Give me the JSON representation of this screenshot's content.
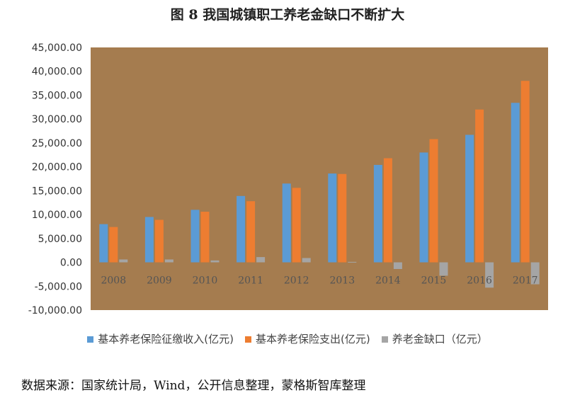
{
  "chart_data": {
    "type": "bar",
    "title": "图 8 我国城镇职工养老金缺口不断扩大",
    "categories": [
      "2008",
      "2009",
      "2010",
      "2011",
      "2012",
      "2013",
      "2014",
      "2015",
      "2016",
      "2017"
    ],
    "series": [
      {
        "name": "基本养老保险征缴收入(亿元)",
        "color": "#5b9bd5",
        "values": [
          8000,
          9500,
          11000,
          13900,
          16500,
          18600,
          20400,
          23000,
          26700,
          33400
        ]
      },
      {
        "name": "基本养老保险支出(亿元)",
        "color": "#ed7d31",
        "values": [
          7400,
          8900,
          10600,
          12800,
          15600,
          18500,
          21800,
          25800,
          32000,
          38000
        ]
      },
      {
        "name": "养老金缺口（亿元）",
        "color": "#a5a5a5",
        "values": [
          600,
          600,
          400,
          1100,
          900,
          100,
          -1400,
          -2800,
          -5300,
          -4600
        ]
      }
    ],
    "y_ticks": [
      "45,000.00",
      "40,000.00",
      "35,000.00",
      "30,000.00",
      "25,000.00",
      "20,000.00",
      "15,000.00",
      "10,000.00",
      "5,000.00",
      "0.00",
      "-5,000.00",
      "-10,000.00"
    ],
    "ylim": [
      -10000,
      45000
    ],
    "plot_background": "#a57c4f",
    "grid": false,
    "legend": "bottom"
  },
  "source_note": "数据来源：国家统计局，Wind，公开信息整理，蒙格斯智库整理"
}
